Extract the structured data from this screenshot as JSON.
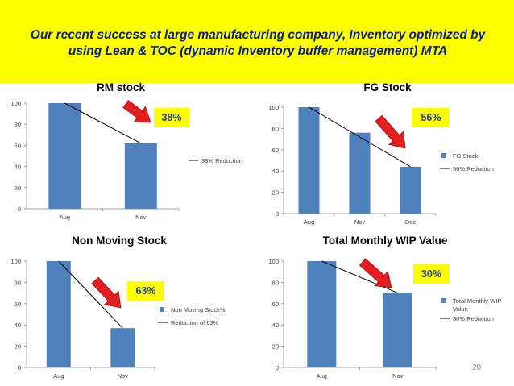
{
  "slide": {
    "title": "Our recent success at large manufacturing company, Inventory optimized by using Lean & TOC (dynamic Inventory buffer management) MTA",
    "number": "20"
  },
  "colors": {
    "banner": "#fefe00",
    "title_text": "#0a1f8f",
    "bar": "#4f81bd",
    "line": "#000000",
    "arrow": "#e31e1e",
    "callout": "#fefe00",
    "callout_text": "#1f3e8f",
    "axis_text": "#404040",
    "gridline": "#d0d0d0"
  },
  "icons": {
    "arrow": "red-down-right-arrow-icon"
  },
  "chart_data": [
    {
      "type": "bar",
      "title": "RM stock",
      "categories": [
        "Aug",
        "Nov"
      ],
      "series": [
        {
          "name": "",
          "values": [
            100,
            62
          ]
        }
      ],
      "trendline": {
        "name": "38% Reduction",
        "values": [
          100,
          62
        ]
      },
      "yticks": [
        "0",
        "20",
        "40",
        "60",
        "80",
        "100"
      ],
      "ylim": [
        0,
        100
      ],
      "callout": "38%",
      "legend": [
        "38% Reduction"
      ]
    },
    {
      "type": "bar",
      "title": "FG Stock",
      "categories": [
        "Aug",
        "Nov",
        "Dec"
      ],
      "series": [
        {
          "name": "FG Stock",
          "values": [
            100,
            76,
            44
          ]
        }
      ],
      "trendline": {
        "name": "56% Reduction",
        "values": [
          100,
          72,
          44
        ]
      },
      "yticks": [
        "0",
        "20",
        "40",
        "60",
        "80",
        "100"
      ],
      "ylim": [
        0,
        100
      ],
      "callout": "56%",
      "legend": [
        "FG Stock",
        "56% Reduction"
      ]
    },
    {
      "type": "bar",
      "title": "Non Moving Stock",
      "categories": [
        "Aug",
        "Nov"
      ],
      "series": [
        {
          "name": "Non Moving Stock%",
          "values": [
            100,
            37
          ]
        }
      ],
      "trendline": {
        "name": "Reduction of 63%",
        "values": [
          100,
          37
        ]
      },
      "yticks": [
        "0",
        "20",
        "40",
        "60",
        "80",
        "100"
      ],
      "ylim": [
        0,
        100
      ],
      "callout": "63%",
      "legend": [
        "Non Moving Stock%",
        "Reduction of 63%"
      ]
    },
    {
      "type": "bar",
      "title": "Total Monthly WIP Value",
      "categories": [
        "Aug",
        "Nov"
      ],
      "series": [
        {
          "name": "Total Monthly WIP Value",
          "values": [
            100,
            70
          ]
        }
      ],
      "trendline": {
        "name": "30% Reduction",
        "values": [
          100,
          70
        ]
      },
      "yticks": [
        "0",
        "20",
        "40",
        "60",
        "80",
        "100"
      ],
      "ylim": [
        0,
        100
      ],
      "callout": "30%",
      "legend": [
        "Total Monthly WIP Value",
        "30% Reduction"
      ]
    }
  ]
}
